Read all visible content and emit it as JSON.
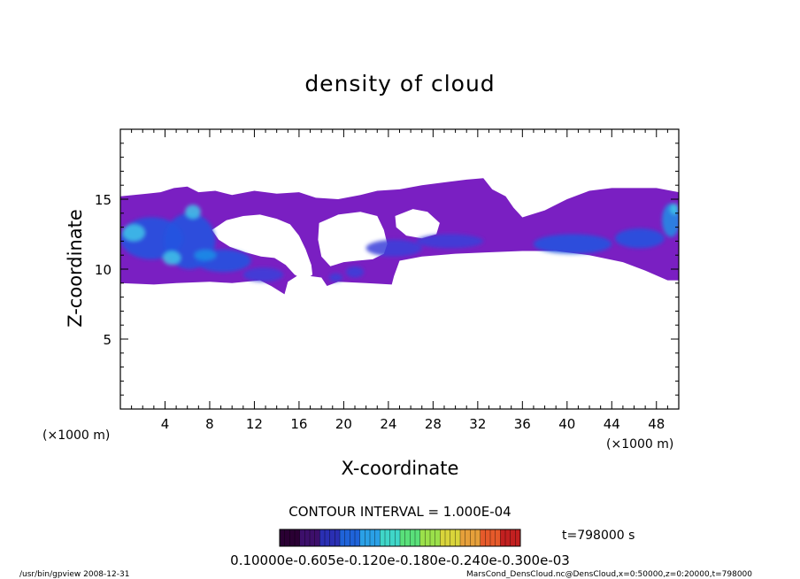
{
  "chart_data": {
    "type": "heatmap",
    "title": "density of cloud",
    "xlabel": "X-coordinate",
    "ylabel": "Z-coordinate",
    "x_unit": "(×1000 m)",
    "xlim": [
      0,
      50
    ],
    "ylim": [
      0,
      20
    ],
    "x_ticks": [
      4,
      8,
      12,
      16,
      20,
      24,
      28,
      32,
      36,
      40,
      44,
      48
    ],
    "y_ticks": [
      5,
      10,
      15
    ],
    "contour_interval": "CONTOUR INTERVAL = 1.000E-04",
    "time_label": "t=798000 s",
    "colorbar_labels": "0.10000e-0.605e-0.120e-0.180e-0.240e-0.300e-03",
    "colorbar_colors": [
      "#2a0033",
      "#3d0f6b",
      "#2a2fb3",
      "#1f63d9",
      "#2aa0e6",
      "#3fd6c8",
      "#59e07a",
      "#9be04a",
      "#d9d43a",
      "#e6a03a",
      "#e65a2a",
      "#c22020"
    ],
    "field_color": "#7a1fc2",
    "footer_left": "/usr/bin/gpview   2008-12-31",
    "footer_right": "MarsCond_DensCloud.nc@DensCloud,x=0:50000,z=0:20000,t=798000",
    "regions": [
      {
        "name": "main-cloud-layer",
        "points": [
          [
            0,
            15.2
          ],
          [
            2.4,
            15.4
          ],
          [
            3.6,
            15.5
          ],
          [
            4.8,
            15.8
          ],
          [
            6,
            15.9
          ],
          [
            7,
            15.5
          ],
          [
            8.5,
            15.6
          ],
          [
            10,
            15.3
          ],
          [
            12,
            15.6
          ],
          [
            14,
            15.4
          ],
          [
            16,
            15.5
          ],
          [
            17.5,
            15.1
          ],
          [
            19.5,
            15
          ],
          [
            21.5,
            15.3
          ],
          [
            23,
            15.6
          ],
          [
            25,
            15.7
          ],
          [
            27,
            16
          ],
          [
            29,
            16.2
          ],
          [
            31,
            16.4
          ],
          [
            32.5,
            16.5
          ],
          [
            33.3,
            15.7
          ],
          [
            34.5,
            15.2
          ],
          [
            35.2,
            14.4
          ],
          [
            36,
            13.7
          ],
          [
            38,
            14.2
          ],
          [
            40,
            15
          ],
          [
            42,
            15.6
          ],
          [
            44,
            15.8
          ],
          [
            46,
            15.8
          ],
          [
            48,
            15.8
          ],
          [
            50,
            15.5
          ],
          [
            50,
            9.2
          ],
          [
            49,
            9.2
          ],
          [
            47,
            9.9
          ],
          [
            45,
            10.5
          ],
          [
            42,
            11
          ],
          [
            39,
            11.3
          ],
          [
            36,
            11.3
          ],
          [
            33,
            11.2
          ],
          [
            30,
            11.1
          ],
          [
            27,
            10.9
          ],
          [
            25,
            10.6
          ],
          [
            24.5,
            9.5
          ],
          [
            24.3,
            8.9
          ],
          [
            22,
            9
          ],
          [
            19.5,
            9.1
          ],
          [
            18.5,
            8.8
          ],
          [
            18,
            9.4
          ],
          [
            16,
            9.6
          ],
          [
            15,
            9.1
          ],
          [
            14.7,
            8.2
          ],
          [
            13.5,
            8.8
          ],
          [
            12.5,
            9.2
          ],
          [
            10,
            9
          ],
          [
            8,
            9.1
          ],
          [
            5,
            9
          ],
          [
            3,
            8.9
          ],
          [
            0,
            9
          ]
        ]
      },
      {
        "name": "gap-left",
        "points": [
          [
            8.2,
            12.8
          ],
          [
            9.5,
            13.5
          ],
          [
            11,
            13.8
          ],
          [
            12.5,
            13.9
          ],
          [
            14,
            13.6
          ],
          [
            15.2,
            13.2
          ],
          [
            16,
            12.4
          ],
          [
            16.6,
            11.4
          ],
          [
            17.1,
            10.3
          ],
          [
            17.2,
            9.6
          ],
          [
            16.5,
            9.2
          ],
          [
            15.6,
            9.6
          ],
          [
            14.8,
            10.3
          ],
          [
            13.8,
            10.8
          ],
          [
            12.6,
            10.9
          ],
          [
            11.2,
            11.2
          ],
          [
            9.8,
            11.6
          ],
          [
            8.8,
            12.1
          ]
        ]
      },
      {
        "name": "gap-center",
        "points": [
          [
            17.8,
            13.3
          ],
          [
            19.5,
            13.9
          ],
          [
            21.5,
            14.1
          ],
          [
            23,
            13.8
          ],
          [
            23.6,
            12.8
          ],
          [
            23.9,
            11.8
          ],
          [
            23.6,
            11.1
          ],
          [
            22.6,
            10.7
          ],
          [
            21.2,
            10.6
          ],
          [
            20,
            10.5
          ],
          [
            18.8,
            10.2
          ],
          [
            18,
            10.9
          ],
          [
            17.7,
            12.1
          ]
        ]
      },
      {
        "name": "gap-right",
        "points": [
          [
            24.6,
            13.8
          ],
          [
            26.2,
            14.3
          ],
          [
            27.5,
            14.1
          ],
          [
            28.6,
            13.3
          ],
          [
            28.3,
            12.5
          ],
          [
            27,
            12.2
          ],
          [
            25.6,
            12.4
          ],
          [
            24.7,
            13
          ]
        ]
      }
    ],
    "cores": [
      {
        "cx": 2.8,
        "cy": 12.2,
        "rx": 2.8,
        "ry": 1.5,
        "level": 3
      },
      {
        "cx": 6.2,
        "cy": 12.0,
        "rx": 2.3,
        "ry": 2.0,
        "level": 3
      },
      {
        "cx": 9.2,
        "cy": 10.6,
        "rx": 2.5,
        "ry": 0.8,
        "level": 3
      },
      {
        "cx": 12.8,
        "cy": 9.6,
        "rx": 1.8,
        "ry": 0.5,
        "level": 2
      },
      {
        "cx": 1.2,
        "cy": 12.6,
        "rx": 1.0,
        "ry": 0.6,
        "level": 5
      },
      {
        "cx": 6.5,
        "cy": 14.1,
        "rx": 0.7,
        "ry": 0.5,
        "level": 5
      },
      {
        "cx": 4.6,
        "cy": 10.8,
        "rx": 0.8,
        "ry": 0.5,
        "level": 5
      },
      {
        "cx": 7.6,
        "cy": 11.0,
        "rx": 1.0,
        "ry": 0.4,
        "level": 4
      },
      {
        "cx": 24.5,
        "cy": 11.5,
        "rx": 2.5,
        "ry": 0.6,
        "level": 2
      },
      {
        "cx": 29.5,
        "cy": 12.0,
        "rx": 3.0,
        "ry": 0.5,
        "level": 2
      },
      {
        "cx": 40.5,
        "cy": 11.8,
        "rx": 3.5,
        "ry": 0.7,
        "level": 3
      },
      {
        "cx": 46.5,
        "cy": 12.2,
        "rx": 2.2,
        "ry": 0.7,
        "level": 3
      },
      {
        "cx": 49.3,
        "cy": 13.5,
        "rx": 0.8,
        "ry": 1.2,
        "level": 4
      },
      {
        "cx": 49.6,
        "cy": 14.3,
        "rx": 0.4,
        "ry": 0.4,
        "level": 5
      },
      {
        "cx": 21.0,
        "cy": 9.8,
        "rx": 0.8,
        "ry": 0.4,
        "level": 2
      },
      {
        "cx": 19.3,
        "cy": 9.4,
        "rx": 0.6,
        "ry": 0.3,
        "level": 2
      }
    ]
  }
}
